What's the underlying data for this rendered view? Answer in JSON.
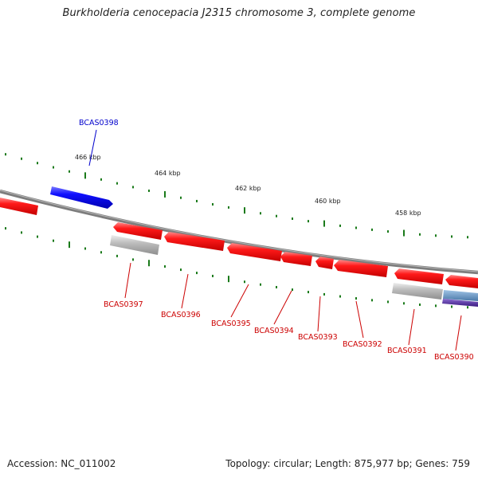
{
  "title": "Burkholderia cenocepacia J2315 chromosome 3, complete genome",
  "footer": {
    "accession": "Accession: NC_011002",
    "summary": "Topology: circular; Length: 875,977 bp; Genes: 759"
  },
  "scale": {
    "ticks": [
      "466 kbp",
      "464 kbp",
      "462 kbp",
      "460 kbp",
      "458 kbp"
    ]
  },
  "colors": {
    "forward_cds": "#0000ff",
    "reverse_cds": "#ff0000",
    "rna_or_other": "#bbbbbb",
    "backbone": "#808080",
    "ticks": "#1a7a1a",
    "label_forward": "#0000cc",
    "label_reverse": "#cc0000"
  },
  "genes": [
    {
      "id": "BCAS0398",
      "strand": "forward"
    },
    {
      "id": "BCAS0397",
      "strand": "reverse"
    },
    {
      "id": "BCAS0396",
      "strand": "reverse"
    },
    {
      "id": "BCAS0395",
      "strand": "reverse"
    },
    {
      "id": "BCAS0394",
      "strand": "reverse"
    },
    {
      "id": "BCAS0393",
      "strand": "reverse"
    },
    {
      "id": "BCAS0392",
      "strand": "reverse"
    },
    {
      "id": "BCAS0391",
      "strand": "reverse"
    },
    {
      "id": "BCAS0390",
      "strand": "reverse"
    }
  ]
}
